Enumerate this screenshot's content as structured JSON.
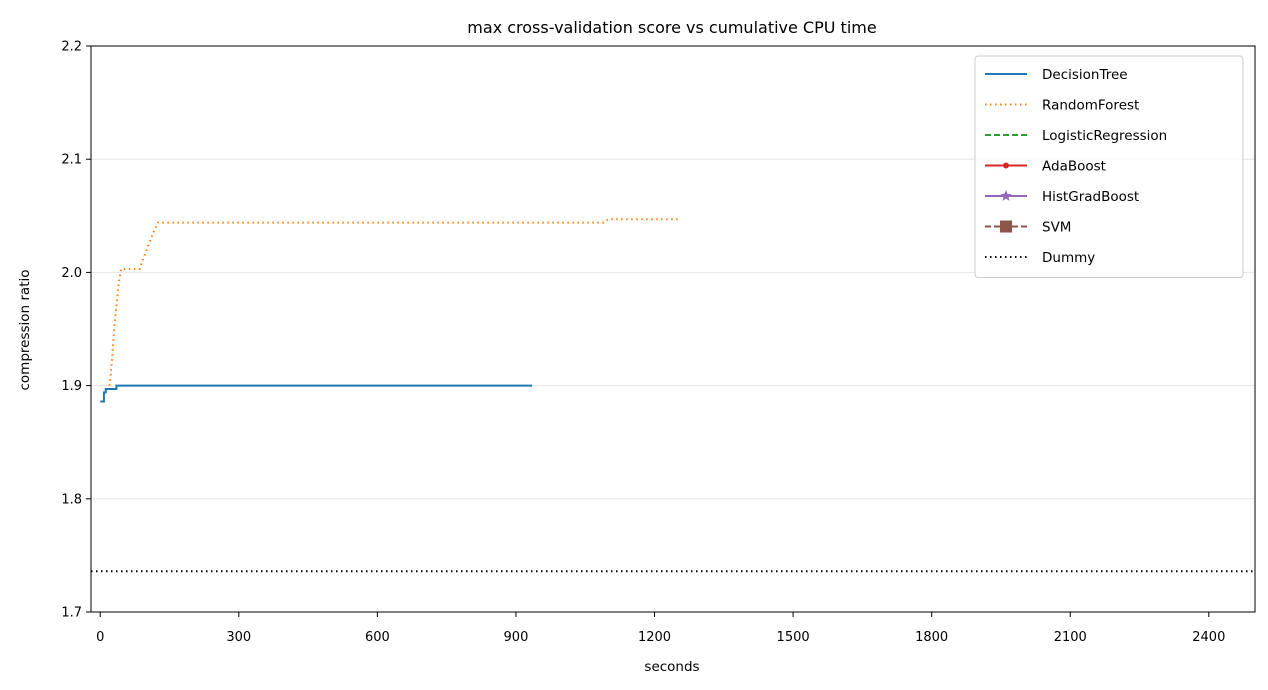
{
  "chart_data": {
    "type": "line",
    "title": "max cross-validation score vs cumulative CPU time",
    "xlabel": "seconds",
    "ylabel": "compression ratio",
    "xlim": [
      -20,
      2500
    ],
    "ylim": [
      1.7,
      2.2
    ],
    "xticks": [
      0,
      300,
      600,
      900,
      1200,
      1500,
      1800,
      2100,
      2400
    ],
    "yticks": [
      1.7,
      1.8,
      1.9,
      2.0,
      2.1,
      2.2
    ],
    "grid": "horizontal",
    "legend_position": "top-right",
    "series": [
      {
        "name": "DecisionTree",
        "color": "#1f77b4",
        "style": "solid",
        "marker": "none",
        "points": [
          [
            0,
            1.886
          ],
          [
            8,
            1.886
          ],
          [
            8,
            1.894
          ],
          [
            12,
            1.894
          ],
          [
            12,
            1.897
          ],
          [
            35,
            1.897
          ],
          [
            35,
            1.9
          ],
          [
            400,
            1.9
          ],
          [
            935,
            1.9
          ]
        ]
      },
      {
        "name": "RandomForest",
        "color": "#ff7f0e",
        "style": "dotted",
        "marker": "none",
        "points": [
          [
            20,
            1.9
          ],
          [
            25,
            1.92
          ],
          [
            30,
            1.95
          ],
          [
            35,
            1.97
          ],
          [
            40,
            1.99
          ],
          [
            45,
            2.003
          ],
          [
            85,
            2.003
          ],
          [
            95,
            2.014
          ],
          [
            105,
            2.025
          ],
          [
            115,
            2.035
          ],
          [
            125,
            2.044
          ],
          [
            1090,
            2.044
          ],
          [
            1100,
            2.047
          ],
          [
            1250,
            2.047
          ]
        ]
      },
      {
        "name": "LogisticRegression",
        "color": "#2ca02c",
        "style": "dashed",
        "marker": "none",
        "points": []
      },
      {
        "name": "AdaBoost",
        "color": "#d62728",
        "style": "solid",
        "marker": "dot",
        "points": []
      },
      {
        "name": "HistGradBoost",
        "color": "#9467bd",
        "style": "solid",
        "marker": "star",
        "points": []
      },
      {
        "name": "SVM",
        "color": "#8c564b",
        "style": "dashed",
        "marker": "square",
        "points": []
      },
      {
        "name": "Dummy",
        "color": "#000000",
        "style": "dotted",
        "marker": "none",
        "hline": 1.736,
        "points": []
      }
    ]
  }
}
